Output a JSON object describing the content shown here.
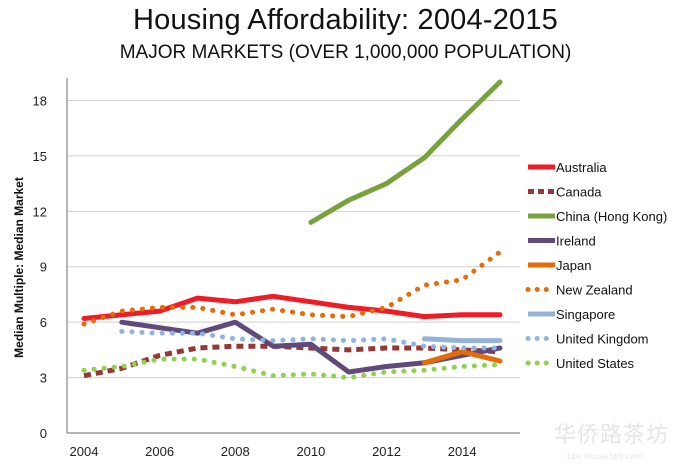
{
  "chart_data": {
    "type": "line",
    "title": "Housing Affordability: 2004-2015",
    "subtitle": "MAJOR MARKETS (OVER 1,000,000 POPULATION)",
    "xlabel": "",
    "ylabel": "Median Multiple: Median Market",
    "xlim": [
      2004,
      2015
    ],
    "ylim": [
      0,
      19
    ],
    "x_ticks": [
      2004,
      2006,
      2008,
      2010,
      2012,
      2014
    ],
    "y_ticks": [
      0,
      3,
      6,
      9,
      12,
      15,
      18
    ],
    "grid": "horizontal",
    "legend_position": "right",
    "series": [
      {
        "name": "Australia",
        "color": "#ee1c25",
        "style": "solid",
        "x": [
          2004,
          2005,
          2006,
          2007,
          2008,
          2009,
          2010,
          2011,
          2012,
          2013,
          2014,
          2015
        ],
        "y": [
          6.2,
          6.4,
          6.6,
          7.3,
          7.1,
          7.4,
          7.1,
          6.8,
          6.6,
          6.3,
          6.4,
          6.4
        ]
      },
      {
        "name": "Canada",
        "color": "#953735",
        "style": "dashed",
        "x": [
          2004,
          2005,
          2006,
          2007,
          2008,
          2009,
          2010,
          2011,
          2012,
          2013,
          2014,
          2015
        ],
        "y": [
          3.1,
          3.5,
          4.2,
          4.6,
          4.7,
          4.7,
          4.6,
          4.5,
          4.6,
          4.6,
          4.5,
          4.4
        ]
      },
      {
        "name": "China (Hong Kong)",
        "color": "#77a23e",
        "style": "solid",
        "x": [
          2010,
          2011,
          2012,
          2013,
          2014,
          2015
        ],
        "y": [
          11.4,
          12.6,
          13.5,
          14.9,
          17.0,
          19.0
        ]
      },
      {
        "name": "Ireland",
        "color": "#604a7b",
        "style": "solid",
        "x": [
          2005,
          2006,
          2007,
          2008,
          2009,
          2010,
          2011,
          2012,
          2013,
          2014,
          2015
        ],
        "y": [
          6.0,
          5.7,
          5.4,
          6.0,
          4.7,
          4.8,
          3.3,
          3.6,
          3.8,
          4.2,
          4.6
        ]
      },
      {
        "name": "Japan",
        "color": "#e36c09",
        "style": "solid",
        "x": [
          2013,
          2014,
          2015
        ],
        "y": [
          3.8,
          4.4,
          3.9
        ]
      },
      {
        "name": "New Zealand",
        "color": "#e46c0a",
        "style": "dotted",
        "x": [
          2004,
          2005,
          2006,
          2007,
          2008,
          2009,
          2010,
          2011,
          2012,
          2013,
          2014,
          2015
        ],
        "y": [
          5.9,
          6.6,
          6.8,
          6.8,
          6.4,
          6.7,
          6.4,
          6.3,
          6.8,
          8.0,
          8.3,
          9.8
        ]
      },
      {
        "name": "Singapore",
        "color": "#95b3d7",
        "style": "solid",
        "x": [
          2013,
          2014,
          2015
        ],
        "y": [
          5.1,
          5.0,
          5.0
        ]
      },
      {
        "name": "United Kingdom",
        "color": "#8eb4e3",
        "style": "dotted",
        "x": [
          2005,
          2006,
          2007,
          2008,
          2009,
          2010,
          2011,
          2012,
          2013,
          2014,
          2015
        ],
        "y": [
          5.5,
          5.4,
          5.4,
          5.1,
          5.0,
          5.1,
          5.0,
          5.1,
          4.7,
          4.6,
          4.6
        ]
      },
      {
        "name": "United States",
        "color": "#92d050",
        "style": "dotted",
        "x": [
          2004,
          2005,
          2006,
          2007,
          2008,
          2009,
          2010,
          2011,
          2012,
          2013,
          2014,
          2015
        ],
        "y": [
          3.4,
          3.6,
          4.0,
          4.0,
          3.6,
          3.1,
          3.2,
          3.0,
          3.3,
          3.4,
          3.6,
          3.7
        ]
      }
    ]
  },
  "watermark": {
    "text": "华侨路茶坊",
    "sub": "bbs.house365.com"
  }
}
